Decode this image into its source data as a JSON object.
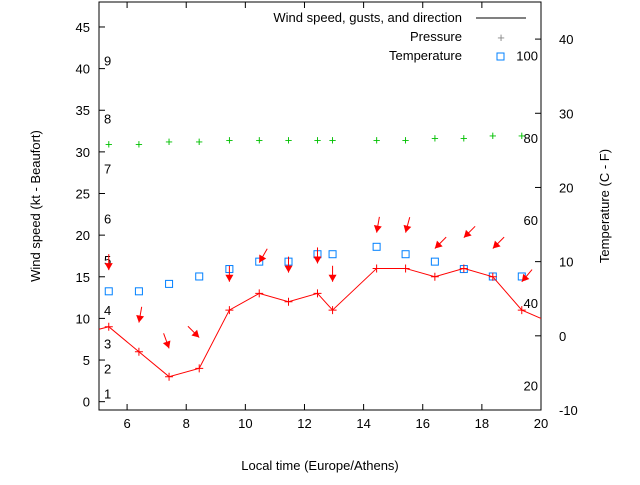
{
  "chart_data": {
    "type": "line",
    "title": "",
    "xlabel": "Local time (Europe/Athens)",
    "ylabel": "Wind speed (kt - Beaufort)",
    "y2label": "Temperature (C - F)",
    "xlim": [
      5.05,
      20
    ],
    "ylim": [
      -1,
      48
    ],
    "y2lim": [
      -10,
      45
    ],
    "xticks": [
      6,
      8,
      10,
      12,
      14,
      16,
      18,
      20
    ],
    "yticks": [
      0,
      5,
      10,
      15,
      20,
      25,
      30,
      35,
      40,
      45
    ],
    "y2ticks": [
      -10,
      0,
      10,
      20,
      30,
      40
    ],
    "beaufort_labels": [
      {
        "label": "1",
        "kt": 1
      },
      {
        "label": "2",
        "kt": 4
      },
      {
        "label": "3",
        "kt": 7
      },
      {
        "label": "4",
        "kt": 11
      },
      {
        "label": "5",
        "kt": 17
      },
      {
        "label": "6",
        "kt": 22
      },
      {
        "label": "7",
        "kt": 28
      },
      {
        "label": "8",
        "kt": 34
      },
      {
        "label": "9",
        "kt": 41
      }
    ],
    "fahrenheit_labels": [
      {
        "label": "20",
        "c": -6.7
      },
      {
        "label": "40",
        "c": 4.4
      },
      {
        "label": "60",
        "c": 15.6
      },
      {
        "label": "80",
        "c": 26.7
      },
      {
        "label": "100",
        "c": 37.8
      }
    ],
    "legend": {
      "placement": "top-right",
      "entries": [
        "Wind speed, gusts, and direction",
        "Pressure",
        "Temperature"
      ]
    },
    "x": [
      5.38,
      6.4,
      7.42,
      8.44,
      9.46,
      10.47,
      11.46,
      12.44,
      12.95,
      14.44,
      15.42,
      16.41,
      17.39,
      18.37,
      19.35
    ],
    "series": [
      {
        "name": "Wind speed, gusts, and direction",
        "color": "#ff0000",
        "values": [
          9,
          6,
          3,
          4,
          11,
          13,
          12,
          13,
          11,
          16,
          16,
          15,
          16,
          15,
          11
        ],
        "end_value": 10,
        "gusts": [
          15.8,
          9.5,
          6.4,
          7.7,
          14.4,
          16.7,
          15.5,
          16.6,
          14.4,
          20.3,
          20.3,
          18.4,
          19.7,
          18.4,
          14.4
        ],
        "direction_deg": [
          0,
          10,
          340,
          315,
          0,
          30,
          0,
          0,
          0,
          10,
          15,
          45,
          45,
          45,
          40
        ]
      },
      {
        "name": "Pressure",
        "color": "#00c000",
        "values": [
          31,
          31,
          31.3,
          31.3,
          31.5,
          31.5,
          31.5,
          31.5,
          31.5,
          31.5,
          31.5,
          31.7,
          31.7,
          32,
          32
        ]
      },
      {
        "name": "Temperature",
        "color": "#0080ff",
        "axis": "y2",
        "values": [
          6,
          6,
          7,
          8,
          9,
          10,
          10,
          11,
          11,
          12,
          11,
          10,
          9,
          8,
          8
        ]
      }
    ]
  }
}
